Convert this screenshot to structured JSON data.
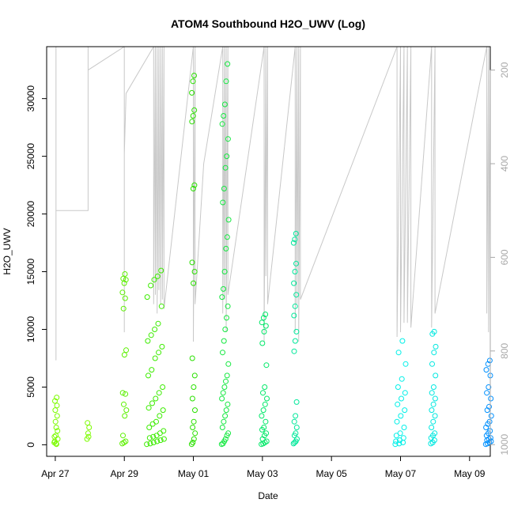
{
  "chart_data": {
    "type": "scatter",
    "title": "ATOM4 Southbound H2O_UWV (Log)",
    "xlabel": "Date",
    "ylabel": "H2O_UWV",
    "x_axis": {
      "range": [
        -0.25,
        12.6
      ],
      "ticks": [
        {
          "value": 0,
          "label": "Apr 27"
        },
        {
          "value": 2,
          "label": "Apr 29"
        },
        {
          "value": 4,
          "label": "May 01"
        },
        {
          "value": 6,
          "label": "May 03"
        },
        {
          "value": 8,
          "label": "May 05"
        },
        {
          "value": 10,
          "label": "May 07"
        },
        {
          "value": 12,
          "label": "May 09"
        }
      ]
    },
    "y_axis": {
      "range": [
        -1000,
        34500
      ],
      "ticks": [
        {
          "value": 0,
          "label": "0"
        },
        {
          "value": 5000,
          "label": "5000"
        },
        {
          "value": 10000,
          "label": "10000"
        },
        {
          "value": 15000,
          "label": "15000"
        },
        {
          "value": 20000,
          "label": "20000"
        },
        {
          "value": 25000,
          "label": "25000"
        },
        {
          "value": 30000,
          "label": "30000"
        }
      ]
    },
    "y2_axis": {
      "range": [
        1025,
        150
      ],
      "ticks": [
        {
          "value": 200,
          "label": "200"
        },
        {
          "value": 400,
          "label": "400"
        },
        {
          "value": 600,
          "label": "600"
        },
        {
          "value": 800,
          "label": "800"
        },
        {
          "value": 1000,
          "label": "1000"
        }
      ]
    },
    "grid": false,
    "legend": "none",
    "colors": {
      "profile_line": "#c8c8c8",
      "right_axis": "#a8a8a8"
    },
    "clusters": [
      {
        "x": 0.02,
        "spread": 0.05,
        "color": "#7cfc00",
        "values": [
          200,
          100,
          500,
          800,
          1200,
          2000,
          2500,
          3000,
          3400,
          3800,
          4100,
          300,
          50,
          700,
          1500
        ]
      },
      {
        "x": 0.95,
        "spread": 0.03,
        "color": "#7cfc00",
        "values": [
          500,
          1000,
          1500,
          1900,
          700
        ]
      },
      {
        "x": 2.0,
        "spread": 0.06,
        "color": "#5cf000",
        "values": [
          100,
          200,
          300,
          800,
          2500,
          3000,
          3500,
          4400,
          4500,
          7800,
          8200,
          11800,
          12700,
          13200,
          14000,
          14300,
          14400,
          14800
        ]
      },
      {
        "x": 2.9,
        "spread": 0.25,
        "color": "#3cec00",
        "values": [
          50,
          100,
          200,
          300,
          400,
          500,
          600,
          700,
          800,
          1000,
          1200,
          1500,
          1800,
          2000,
          2500,
          3000,
          3200,
          3600,
          4000,
          4500,
          5000,
          6000,
          6500,
          7500,
          8000,
          8500,
          9000,
          9500,
          10000,
          10500,
          12000,
          12800,
          13800,
          14300,
          14600,
          15100
        ]
      },
      {
        "x": 4.0,
        "spread": 0.05,
        "color": "#2ae000",
        "values": [
          50,
          200,
          500,
          1000,
          1500,
          2000,
          3000,
          4000,
          5000,
          6000,
          7500,
          14000,
          15000,
          15800,
          22200,
          22500,
          28000,
          28500,
          29000,
          30500,
          31500,
          32000
        ]
      },
      {
        "x": 4.92,
        "spread": 0.1,
        "color": "#14e840",
        "values": [
          50,
          100,
          300,
          500,
          800,
          1000,
          1500,
          2000,
          2500,
          3000,
          3500,
          4000,
          4500,
          5000,
          5500,
          6000,
          7000,
          8000,
          9000,
          10000,
          11000,
          12000,
          12800,
          13500,
          15000,
          17000,
          18000,
          19500,
          21000,
          22200,
          24000,
          25000,
          26500,
          27800,
          28500,
          29500,
          31500,
          33000
        ]
      },
      {
        "x": 6.05,
        "spread": 0.08,
        "color": "#00e868",
        "values": [
          50,
          100,
          200,
          300,
          500,
          800,
          1000,
          1300,
          1500,
          2000,
          2500,
          3000,
          3500,
          4000,
          4500,
          5000,
          6900,
          8800,
          9800,
          10300,
          10600,
          11000,
          11300
        ]
      },
      {
        "x": 6.95,
        "spread": 0.05,
        "color": "#00e89a",
        "values": [
          100,
          200,
          300,
          500,
          800,
          1000,
          1500,
          2000,
          2500,
          3700,
          8100,
          9000,
          9800,
          11200,
          12000,
          13000,
          14000,
          15000,
          15700,
          17500,
          17800,
          18300
        ]
      },
      {
        "x": 10.0,
        "spread": 0.15,
        "color": "#00f0e8",
        "values": [
          50,
          100,
          200,
          300,
          400,
          600,
          800,
          1000,
          1500,
          2000,
          2500,
          3000,
          3500,
          4000,
          4500,
          5000,
          5700,
          7000,
          8000,
          9000
        ]
      },
      {
        "x": 10.95,
        "spread": 0.07,
        "color": "#00e8e0",
        "values": [
          100,
          200,
          400,
          600,
          800,
          1000,
          1500,
          2000,
          2500,
          3000,
          3500,
          4000,
          4500,
          5000,
          6000,
          7000,
          8000,
          8500,
          9600,
          9800
        ]
      },
      {
        "x": 12.55,
        "spread": 0.08,
        "color": "#0090ff",
        "values": [
          50,
          100,
          200,
          300,
          400,
          500,
          600,
          800,
          1000,
          1200,
          1500,
          1800,
          2000,
          2500,
          3000,
          3300,
          4000,
          4500,
          5000,
          6000,
          6500,
          7000,
          7300
        ]
      }
    ],
    "profile_series": {
      "name": "",
      "axis": "y2",
      "x": [
        0.02,
        0.02,
        0.02,
        0.95,
        0.95,
        0.95,
        2.0,
        2.0,
        2.0,
        2.0,
        2.05,
        2.85,
        2.85,
        2.9,
        2.9,
        2.95,
        2.95,
        3.0,
        3.0,
        3.05,
        3.05,
        3.1,
        3.1,
        3.15,
        3.15,
        4.0,
        4.0,
        4.05,
        4.05,
        4.3,
        4.85,
        4.85,
        4.9,
        4.9,
        4.95,
        4.95,
        5.0,
        5.0,
        6.05,
        6.05,
        6.1,
        6.1,
        6.15,
        6.15,
        6.95,
        6.95,
        7.0,
        7.0,
        7.05,
        7.05,
        7.1,
        7.1,
        9.9,
        9.9,
        10.0,
        10.0,
        10.1,
        10.1,
        10.2,
        10.2,
        10.3,
        10.3,
        10.9,
        10.9,
        11.0,
        11.0,
        12.5,
        12.5,
        12.55,
        12.55,
        12.6,
        12.6,
        12.65
      ],
      "y": [
        150,
        820,
        500,
        500,
        150,
        200,
        150,
        760,
        200,
        380,
        250,
        150,
        700,
        150,
        680,
        150,
        720,
        150,
        670,
        150,
        700,
        150,
        690,
        150,
        710,
        150,
        780,
        150,
        700,
        400,
        150,
        720,
        150,
        690,
        150,
        760,
        150,
        680,
        150,
        780,
        150,
        640,
        150,
        700,
        150,
        760,
        150,
        700,
        150,
        780,
        150,
        690,
        150,
        770,
        150,
        760,
        150,
        740,
        150,
        740,
        150,
        750,
        150,
        750,
        150,
        720,
        150,
        720,
        150,
        760,
        150,
        770,
        400
      ]
    }
  }
}
